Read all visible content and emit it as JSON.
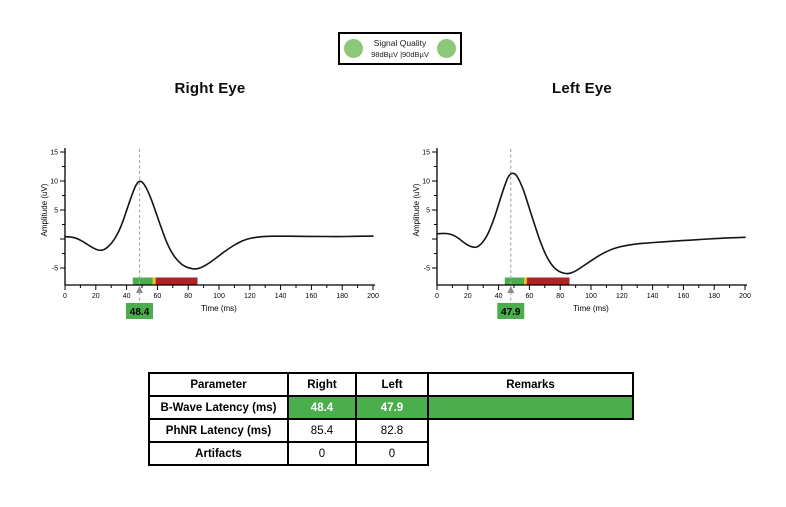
{
  "colors": {
    "green": "#4AAE4C",
    "red": "#B22222",
    "yellow": "#EFC31C",
    "indicator_green": "#8CC878",
    "cursor_gray": "#ABABAB",
    "arrow_gray": "#8C8C8C",
    "waveform_black": "#141414"
  },
  "legend": {
    "title": "Signal Quality",
    "reading": "98dBµV |90dBµV"
  },
  "chart_data": [
    {
      "type": "line",
      "title": "Right Eye",
      "xlabel": "Time (ms)",
      "ylabel": "Amplitude (uV)",
      "xlim": [
        0,
        200
      ],
      "ylim": [
        -5,
        15
      ],
      "x_ticks": [
        0,
        20,
        40,
        60,
        80,
        100,
        120,
        140,
        160,
        180,
        200
      ],
      "y_ticks": [
        15,
        10,
        5,
        0,
        -5
      ],
      "y_tick_labels": [
        15,
        10,
        5,
        -5
      ],
      "grid": false,
      "series": [
        {
          "name": "ERG waveform",
          "points": [
            [
              0,
              0.4
            ],
            [
              4,
              0.35
            ],
            [
              8,
              0.1
            ],
            [
              12,
              -0.5
            ],
            [
              16,
              -1.2
            ],
            [
              20,
              -1.8
            ],
            [
              23,
              -2.0
            ],
            [
              26,
              -1.8
            ],
            [
              29,
              -1.1
            ],
            [
              32,
              -0.1
            ],
            [
              35,
              1.3
            ],
            [
              38,
              3.3
            ],
            [
              41,
              5.7
            ],
            [
              44,
              8.0
            ],
            [
              46,
              9.3
            ],
            [
              48,
              10.0
            ],
            [
              50,
              9.9
            ],
            [
              52,
              9.2
            ],
            [
              55,
              7.6
            ],
            [
              58,
              5.4
            ],
            [
              62,
              2.3
            ],
            [
              66,
              -0.6
            ],
            [
              70,
              -2.7
            ],
            [
              74,
              -4.0
            ],
            [
              78,
              -4.8
            ],
            [
              82,
              -5.1
            ],
            [
              85,
              -5.2
            ],
            [
              89,
              -4.9
            ],
            [
              94,
              -4.1
            ],
            [
              100,
              -2.9
            ],
            [
              106,
              -1.7
            ],
            [
              112,
              -0.7
            ],
            [
              118,
              0.0
            ],
            [
              124,
              0.3
            ],
            [
              130,
              0.45
            ],
            [
              140,
              0.5
            ],
            [
              152,
              0.45
            ],
            [
              164,
              0.45
            ],
            [
              176,
              0.4
            ],
            [
              188,
              0.45
            ],
            [
              200,
              0.5
            ]
          ]
        }
      ],
      "zones": [
        {
          "color": "green",
          "from": 44,
          "to": 57
        },
        {
          "color": "yellow",
          "from": 57,
          "to": 58.8
        },
        {
          "color": "red",
          "from": 58.8,
          "to": 86
        }
      ],
      "marker": {
        "label": "48.4",
        "x": 48.4
      }
    },
    {
      "type": "line",
      "title": "Left Eye",
      "xlabel": "Time (ms)",
      "ylabel": "Amplitude (uV)",
      "xlim": [
        0,
        200
      ],
      "ylim": [
        -5,
        15
      ],
      "x_ticks": [
        0,
        20,
        40,
        60,
        80,
        100,
        120,
        140,
        160,
        180,
        200
      ],
      "y_ticks": [
        15,
        10,
        5,
        0,
        -5
      ],
      "y_tick_labels": [
        15,
        10,
        5,
        -5
      ],
      "grid": false,
      "series": [
        {
          "name": "ERG waveform",
          "points": [
            [
              0,
              0.9
            ],
            [
              4,
              1.0
            ],
            [
              8,
              0.9
            ],
            [
              12,
              0.5
            ],
            [
              16,
              -0.3
            ],
            [
              20,
              -1.1
            ],
            [
              24,
              -1.5
            ],
            [
              27,
              -1.3
            ],
            [
              30,
              -0.5
            ],
            [
              33,
              0.8
            ],
            [
              36,
              2.7
            ],
            [
              39,
              5.1
            ],
            [
              42,
              7.7
            ],
            [
              45,
              10.0
            ],
            [
              47,
              11.1
            ],
            [
              49,
              11.4
            ],
            [
              51,
              11.2
            ],
            [
              53,
              10.4
            ],
            [
              56,
              8.6
            ],
            [
              59,
              6.1
            ],
            [
              63,
              2.8
            ],
            [
              67,
              -0.5
            ],
            [
              71,
              -3.0
            ],
            [
              75,
              -4.7
            ],
            [
              79,
              -5.6
            ],
            [
              82,
              -5.9
            ],
            [
              85,
              -6.0
            ],
            [
              88,
              -5.8
            ],
            [
              92,
              -5.2
            ],
            [
              97,
              -4.3
            ],
            [
              103,
              -3.2
            ],
            [
              109,
              -2.3
            ],
            [
              115,
              -1.6
            ],
            [
              121,
              -1.2
            ],
            [
              128,
              -0.9
            ],
            [
              136,
              -0.7
            ],
            [
              146,
              -0.5
            ],
            [
              158,
              -0.3
            ],
            [
              170,
              -0.1
            ],
            [
              182,
              0.1
            ],
            [
              200,
              0.3
            ]
          ]
        }
      ],
      "zones": [
        {
          "color": "green",
          "from": 44,
          "to": 56.5
        },
        {
          "color": "yellow",
          "from": 56.5,
          "to": 58.3
        },
        {
          "color": "red",
          "from": 58.3,
          "to": 86
        }
      ],
      "marker": {
        "label": "47.9",
        "x": 47.9
      }
    }
  ],
  "table": {
    "headers": [
      "Parameter",
      "Right",
      "Left",
      "Remarks"
    ],
    "rows": [
      {
        "parameter": "B-Wave Latency (ms)",
        "right": "48.4",
        "left": "47.9",
        "remarks": "",
        "highlighted": true
      },
      {
        "parameter": "PhNR Latency (ms)",
        "right": "85.4",
        "left": "82.8",
        "remarks": "",
        "highlighted": false
      },
      {
        "parameter": "Artifacts",
        "right": "0",
        "left": "0",
        "remarks": "",
        "highlighted": false
      }
    ]
  }
}
